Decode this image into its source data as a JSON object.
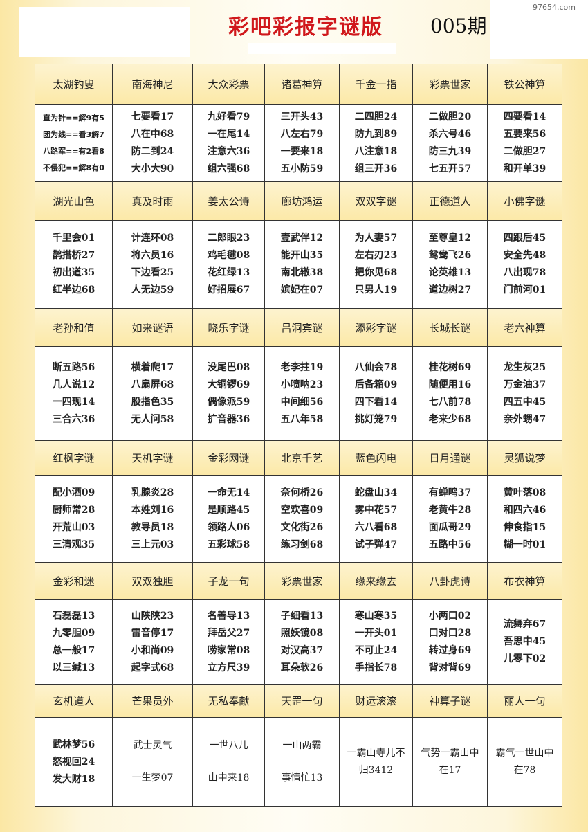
{
  "header": {
    "title": "彩吧彩报字谜版",
    "issue": "005期",
    "watermark": "97654.com"
  },
  "table": {
    "groups": [
      {
        "headers": [
          "太湖钓叟",
          "南海神尼",
          "大众彩票",
          "诸葛神算",
          "千金一指",
          "彩票世家",
          "铁公神算"
        ],
        "cells": [
          [
            "直为针==解9有5",
            "团为线==看3解7",
            "八路军==有2看8",
            "不侵犯==解8有0"
          ],
          [
            "七要看17",
            "八在中68",
            "防二到24",
            "大小大90"
          ],
          [
            "九好看79",
            "一在尾14",
            "注意六36",
            "组六强68"
          ],
          [
            "三开头43",
            "八左右79",
            "一要来18",
            "五小防59"
          ],
          [
            "二四胆24",
            "防九到89",
            "八注意18",
            "组三开36"
          ],
          [
            "二做胆20",
            "杀六号46",
            "防三九39",
            "七五开57"
          ],
          [
            "四要看14",
            "五要来56",
            "二做胆27",
            "和开单39"
          ]
        ]
      },
      {
        "headers": [
          "湖光山色",
          "真及时雨",
          "姜太公诗",
          "廊坊鸿运",
          "双双字谜",
          "正德道人",
          "小佛字谜"
        ],
        "cells": [
          [
            "千里会01",
            "鹊搭桥27",
            "初出道35",
            "红半边68"
          ],
          [
            "计连环08",
            "将六员16",
            "下边看25",
            "人无边59"
          ],
          [
            "二郎眼23",
            "鸡毛毽08",
            "花红绿13",
            "好招展67"
          ],
          [
            "壹武伴12",
            "能开山35",
            "南北辙38",
            "嫔妃在07"
          ],
          [
            "为人妻57",
            "左右刃23",
            "把你见68",
            "只男人19"
          ],
          [
            "至尊皇12",
            "鸳鸯飞26",
            "论英雄13",
            "道边树27"
          ],
          [
            "四跟后45",
            "安全先48",
            "八出现78",
            "门前河01"
          ]
        ]
      },
      {
        "headers": [
          "老孙和值",
          "如来谜语",
          "晓乐字谜",
          "吕洞宾谜",
          "添彩字谜",
          "长城长谜",
          "老六神算"
        ],
        "cells": [
          [
            "断五路56",
            "几人说12",
            "一四现14",
            "三合六36"
          ],
          [
            "横着爬17",
            "八扇屏68",
            "股指色35",
            "无人问58"
          ],
          [
            "没尾巴08",
            "大铜锣69",
            "偶像派59",
            "扩音器36"
          ],
          [
            "老李拄19",
            "小喷呐23",
            "中间细56",
            "五八年58"
          ],
          [
            "八仙会78",
            "后备箱09",
            "四下看14",
            "挑灯笼79"
          ],
          [
            "桂花树69",
            "随便用16",
            "七八前78",
            "老来少68"
          ],
          [
            "龙生灰25",
            "万金油37",
            "四五中45",
            "亲外甥47"
          ]
        ]
      },
      {
        "headers": [
          "红枫字谜",
          "天机字谜",
          "金彩网谜",
          "北京千艺",
          "蓝色闪电",
          "日月通谜",
          "灵狐说梦"
        ],
        "cells": [
          [
            "配小酒09",
            "厨师常28",
            "开荒山03",
            "三清观35"
          ],
          [
            "乳腺炎28",
            "本姓刘16",
            "教导员18",
            "三上元03"
          ],
          [
            "一命无14",
            "是顺路45",
            "领路人06",
            "五彩球58"
          ],
          [
            "奈何桥26",
            "空欢喜09",
            "文化街26",
            "练习剑68"
          ],
          [
            "蛇盘山34",
            "雾中花57",
            "六八看68",
            "试子弹47"
          ],
          [
            "有蝉鸣37",
            "老黄牛28",
            "面瓜哥29",
            "五路中56"
          ],
          [
            "黄叶落08",
            "和四六46",
            "伸食指15",
            "糊一时01"
          ]
        ]
      },
      {
        "headers": [
          "金彩和迷",
          "双双独胆",
          "子龙一句",
          "彩票世家",
          "缘来缘去",
          "八卦虎诗",
          "布衣神算"
        ],
        "cells": [
          [
            "石磊磊13",
            "九零胆09",
            "总一般17",
            "以三缄13"
          ],
          [
            "山陕陕23",
            "雷音停17",
            "小和尚09",
            "起字式68"
          ],
          [
            "名善导13",
            "拜岳父27",
            "唠家常08",
            "立方尺39"
          ],
          [
            "子细看13",
            "照妖镜08",
            "对汉高37",
            "耳朵软26"
          ],
          [
            "寒山寒35",
            "一开头01",
            "不可止24",
            "手指长78"
          ],
          [
            "小两口02",
            "口对口28",
            "转过身69",
            "背对背69"
          ],
          [
            "流舞弃67",
            "吾思中45",
            "儿零下02"
          ]
        ]
      },
      {
        "headers": [
          "玄机道人",
          "芒果员外",
          "无私奉献",
          "天罡一句",
          "财运滚滚",
          "神算子谜",
          "丽人一句"
        ],
        "cells": [
          [
            "武林梦56",
            "怒视回24",
            "发大财18"
          ],
          [
            "武士灵气",
            "一生梦07"
          ],
          [
            "一世八儿",
            "山中来18"
          ],
          [
            "一山两霸",
            "事情忙13"
          ],
          [
            "一霸山寺儿不归3412"
          ],
          [
            "气势一霸山中在17"
          ],
          [
            "霸气一世山中在78"
          ]
        ]
      }
    ]
  }
}
